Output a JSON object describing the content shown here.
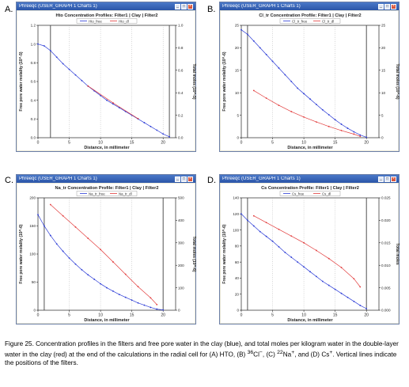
{
  "figure_caption": "Figure 25. Concentration profiles in the filters and free pore water in the clay (blue), and total moles per kilogram water in the double-layer water in the clay (red) at the end of the calculations in the radial cell for (A) HTO, (B) 36Cl-, (C) 22Na+, and (D) Cs+. Vertical lines indicate the positions of the filters.",
  "caption_parts": [
    "Figure 25. Concentration profiles in the filters and free pore water in the clay (blue), and total moles per kilogram water in the double-layer water in the clay (red) at the end of the calculations in the radial cell for (A) HTO, (B) ",
    "36",
    "Cl",
    "−",
    ", (C) ",
    "22",
    "Na",
    "+",
    ", and (D) Cs",
    "+",
    ". Vertical lines indicate the positions of the filters."
  ],
  "window_title": "Phreeqc (USER_GRAPH 1 Charts 1)",
  "colors": {
    "blue": "#2b3bd6",
    "red": "#e23b3b",
    "vline": "#404040",
    "grid": "#9a9a9a"
  },
  "chart_data": [
    {
      "letter": "A.",
      "type": "line",
      "title": "Hto Concentration Profiles: Filter1 | Clay | Filter2",
      "xlabel": "Distance, in millimeter",
      "ylabel": "Free pore water molality (10^-5)",
      "y2label": "Total moles (10^-5)",
      "xlim": [
        0,
        22
      ],
      "ylim": [
        0,
        1.2
      ],
      "y2lim": [
        0,
        1.0
      ],
      "xticks": [
        0,
        5,
        10,
        15,
        20
      ],
      "yticks": [
        0,
        0.2,
        0.4,
        0.6,
        0.8,
        1.0,
        1.2
      ],
      "y2ticks": [
        0,
        0.2,
        0.4,
        0.6,
        0.8,
        1.0
      ],
      "xtick_labels": [
        "0",
        "5",
        "10",
        "15",
        "20"
      ],
      "ytick_labels": [
        "0.0",
        "0.2",
        "0.4",
        "0.6",
        "0.8",
        "1.0",
        "1.2"
      ],
      "y2tick_labels": [
        "0.0",
        "0.2",
        "0.4",
        "0.6",
        "0.8",
        "1.0"
      ],
      "vlines": [
        2,
        21
      ],
      "legend": [
        "Hto_free",
        "Hto_dl"
      ],
      "series": [
        {
          "name": "Hto_free",
          "color": "blue",
          "axis": "y",
          "x": [
            0,
            1,
            2,
            3,
            4,
            5,
            6,
            7,
            8,
            9,
            10,
            11,
            12,
            13,
            14,
            15,
            16,
            17,
            18,
            19,
            20,
            21
          ],
          "y": [
            1.0,
            0.98,
            0.93,
            0.86,
            0.79,
            0.73,
            0.67,
            0.61,
            0.55,
            0.5,
            0.45,
            0.4,
            0.36,
            0.32,
            0.28,
            0.24,
            0.2,
            0.16,
            0.12,
            0.08,
            0.04,
            0.01
          ]
        },
        {
          "name": "Hto_dl",
          "color": "red",
          "axis": "y2",
          "x": [
            8,
            12,
            16
          ],
          "y": [
            0.46,
            0.31,
            0.17
          ]
        }
      ]
    },
    {
      "letter": "B.",
      "type": "line",
      "title": "Cl_tr Concentration Profile: Filter1 | Clay | Filter2",
      "xlabel": "Distance, in millimeter",
      "ylabel": "Free pore water molality (10^-6)",
      "y2label": "Total moles (10^-6)",
      "xlim": [
        0,
        22
      ],
      "ylim": [
        0,
        25
      ],
      "y2lim": [
        0,
        25
      ],
      "xticks": [
        0,
        5,
        10,
        15,
        20
      ],
      "yticks": [
        0,
        5,
        10,
        15,
        20,
        25
      ],
      "y2ticks": [
        0,
        5,
        10,
        15,
        20,
        25
      ],
      "xtick_labels": [
        "0",
        "5",
        "10",
        "15",
        "20"
      ],
      "ytick_labels": [
        "0",
        "5",
        "10",
        "15",
        "20",
        "25"
      ],
      "y2tick_labels": [
        "0",
        "5",
        "10",
        "15",
        "20",
        "25"
      ],
      "vlines": [
        1,
        20
      ],
      "legend": [
        "Cl_tr_free",
        "Cl_tr_dl"
      ],
      "series": [
        {
          "name": "Cl_tr_free",
          "color": "blue",
          "axis": "y",
          "x": [
            0,
            1,
            2,
            3,
            4,
            5,
            6,
            7,
            8,
            9,
            10,
            11,
            12,
            13,
            14,
            15,
            16,
            17,
            18,
            19,
            20
          ],
          "y": [
            24,
            23,
            21.5,
            20,
            18.5,
            17,
            15.5,
            14,
            12.5,
            11,
            9.8,
            8.6,
            7.4,
            6.2,
            5.1,
            4,
            3,
            2.1,
            1.3,
            0.6,
            0.1
          ]
        },
        {
          "name": "Cl_tr_dl",
          "color": "red",
          "axis": "y2",
          "x": [
            2,
            4,
            6,
            8,
            10,
            12,
            14,
            16,
            18,
            19
          ],
          "y": [
            10.5,
            8.8,
            7.2,
            5.8,
            4.6,
            3.5,
            2.5,
            1.6,
            0.8,
            0.3
          ]
        }
      ]
    },
    {
      "letter": "C.",
      "type": "line",
      "title": "Na_tr Concentration Profile: Filter1 | Clay | Filter2",
      "xlabel": "Distance, in millimeter",
      "ylabel": "Free pore water molality (10^-6)",
      "y2label": "Total moles (10^-6)",
      "xlim": [
        0,
        22
      ],
      "ylim": [
        0,
        200
      ],
      "y2lim": [
        0,
        500
      ],
      "xticks": [
        0,
        5,
        10,
        15,
        20
      ],
      "yticks": [
        0,
        50,
        100,
        150,
        200
      ],
      "y2ticks": [
        0,
        100,
        200,
        300,
        400,
        500
      ],
      "xtick_labels": [
        "0",
        "5",
        "10",
        "15",
        "20"
      ],
      "ytick_labels": [
        "0",
        "50",
        "100",
        "150",
        "200"
      ],
      "y2tick_labels": [
        "0",
        "100",
        "200",
        "300",
        "400",
        "500"
      ],
      "vlines": [
        1,
        20
      ],
      "legend": [
        "Na_tr_free",
        "Na_tr_dl"
      ],
      "series": [
        {
          "name": "Na_tr_free",
          "color": "blue",
          "axis": "y",
          "x": [
            0,
            1,
            2,
            3,
            4,
            5,
            6,
            7,
            8,
            9,
            10,
            11,
            12,
            13,
            14,
            15,
            16,
            17,
            18,
            19,
            20
          ],
          "y": [
            170,
            150,
            133,
            118,
            105,
            93,
            82,
            72,
            63,
            55,
            47,
            40,
            34,
            28,
            23,
            18,
            13,
            9,
            5,
            2,
            0.5
          ]
        },
        {
          "name": "Na_tr_dl",
          "color": "red",
          "axis": "y2",
          "x": [
            2,
            4,
            6,
            8,
            10,
            12,
            14,
            16,
            18,
            19
          ],
          "y": [
            470,
            420,
            370,
            320,
            270,
            215,
            160,
            105,
            55,
            25
          ]
        }
      ]
    },
    {
      "letter": "D.",
      "type": "line",
      "title": "Cs Concentration Profile: Filter1 | Clay | Filter2",
      "xlabel": "Distance, in millimeter",
      "ylabel": "Free pore water molality (10^-6)",
      "y2label": "Total moles",
      "xlim": [
        0,
        22
      ],
      "ylim": [
        0,
        140
      ],
      "y2lim": [
        0,
        0.025
      ],
      "xticks": [
        0,
        5,
        10,
        15,
        20
      ],
      "yticks": [
        0,
        20,
        40,
        60,
        80,
        100,
        120,
        140
      ],
      "y2ticks": [
        0,
        0.005,
        0.01,
        0.015,
        0.02,
        0.025
      ],
      "xtick_labels": [
        "0",
        "5",
        "10",
        "15",
        "20"
      ],
      "ytick_labels": [
        "0",
        "20",
        "40",
        "60",
        "80",
        "100",
        "120",
        "140"
      ],
      "y2tick_labels": [
        "0.000",
        "0.005",
        "0.010",
        "0.015",
        "0.020",
        "0.025"
      ],
      "vlines": [
        1,
        20
      ],
      "legend": [
        "Cs_free",
        "Cs_dl"
      ],
      "series": [
        {
          "name": "Cs_free",
          "color": "blue",
          "axis": "y",
          "x": [
            0,
            1,
            2,
            3,
            4,
            5,
            6,
            7,
            8,
            9,
            10,
            11,
            12,
            13,
            14,
            15,
            16,
            17,
            18,
            19,
            20
          ],
          "y": [
            120,
            112,
            105,
            98,
            92,
            86,
            79,
            72,
            66,
            60,
            54,
            48,
            42,
            36,
            31,
            26,
            21,
            16,
            11,
            6,
            2
          ]
        },
        {
          "name": "Cs_dl",
          "color": "red",
          "axis": "y2",
          "x": [
            2,
            4,
            6,
            8,
            10,
            12,
            14,
            16,
            18,
            19
          ],
          "y": [
            0.021,
            0.0195,
            0.018,
            0.0165,
            0.015,
            0.0133,
            0.0115,
            0.0095,
            0.007,
            0.0052
          ]
        }
      ]
    }
  ]
}
